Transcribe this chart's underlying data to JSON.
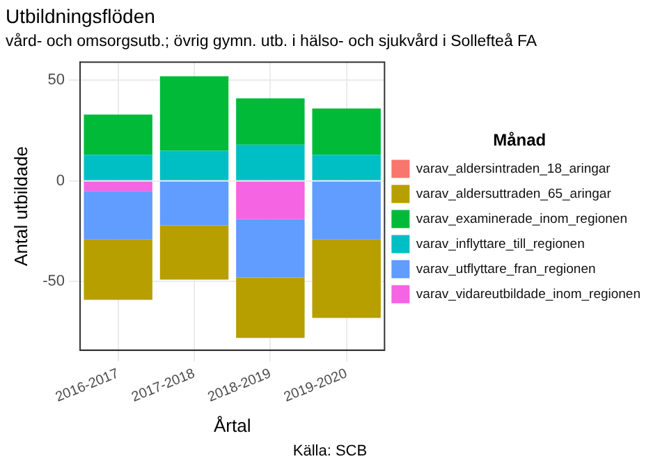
{
  "chart_data": {
    "type": "bar",
    "title": "Utbildningsflöden",
    "subtitle": "vård- och omsorgsutb.; övrig gymn. utb. i hälso- och sjukvård i Sollefteå FA",
    "xlabel": "Årtal",
    "ylabel": "Antal utbildade",
    "legend_title": "Månad",
    "annotations": [
      "Källa: SCB"
    ],
    "categories": [
      "2016-2017",
      "2017-2018",
      "2018-2019",
      "2019-2020"
    ],
    "stacked": true,
    "ylim": [
      -84,
      59
    ],
    "yticks": [
      -50,
      0,
      50
    ],
    "grid": true,
    "legend": "right",
    "series": [
      {
        "name": "varav_vidareutbildade_inom_regionen",
        "color": "#f564e3",
        "values": [
          -5,
          0,
          -19,
          0
        ]
      },
      {
        "name": "varav_utflyttare_fran_regionen",
        "color": "#619cff",
        "values": [
          -24,
          -22,
          -29,
          -29
        ]
      },
      {
        "name": "varav_inflyttare_till_regionen",
        "color": "#00bfc4",
        "values": [
          13,
          15,
          18,
          13
        ]
      },
      {
        "name": "varav_examinerade_inom_regionen",
        "color": "#00ba38",
        "values": [
          20,
          37,
          23,
          23
        ]
      },
      {
        "name": "varav_aldersuttraden_65_aringar",
        "color": "#b79f00",
        "values": [
          -30,
          -27,
          -30,
          -39
        ]
      },
      {
        "name": "varav_aldersintraden_18_aringar",
        "color": "#f8766d",
        "values": [
          0,
          0,
          0,
          0
        ]
      }
    ]
  }
}
